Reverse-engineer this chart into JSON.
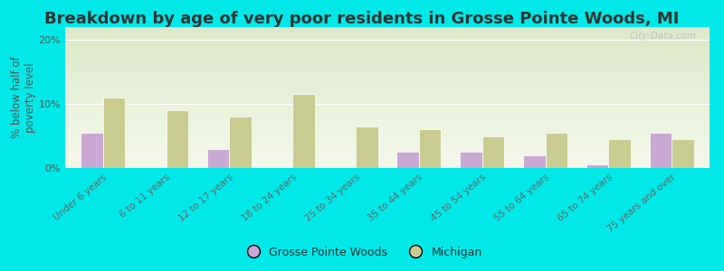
{
  "title": "Breakdown by age of very poor residents in Grosse Pointe Woods, MI",
  "ylabel": "% below half of\npoverty level",
  "categories": [
    "Under 6 years",
    "6 to 11 years",
    "12 to 17 years",
    "18 to 24 years",
    "25 to 34 years",
    "35 to 44 years",
    "45 to 54 years",
    "55 to 64 years",
    "65 to 74 years",
    "75 years and over"
  ],
  "gpw_values": [
    5.5,
    0.0,
    3.0,
    0.0,
    0.0,
    2.5,
    2.5,
    2.0,
    0.5,
    5.5
  ],
  "mi_values": [
    11.0,
    9.0,
    8.0,
    11.5,
    6.5,
    6.0,
    5.0,
    5.5,
    4.5,
    4.5
  ],
  "gpw_color": "#c9a8d4",
  "mi_color": "#c8cc90",
  "background_outer": "#00e8e8",
  "background_plot_top": "#dce8c8",
  "background_plot_bottom": "#f4f8ec",
  "title_fontsize": 13,
  "ylabel_fontsize": 8.5,
  "ylim": [
    0,
    22
  ],
  "yticks": [
    0,
    10,
    20
  ],
  "ytick_labels": [
    "0%",
    "10%",
    "20%"
  ],
  "legend_gpw": "Grosse Pointe Woods",
  "legend_mi": "Michigan",
  "bar_width": 0.35,
  "watermark": "City-Data.com"
}
